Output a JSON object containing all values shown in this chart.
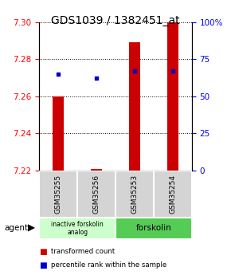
{
  "title": "GDS1039 / 1382451_at",
  "samples": [
    "GSM35255",
    "GSM35256",
    "GSM35253",
    "GSM35254"
  ],
  "bar_bottoms": [
    7.22,
    7.22,
    7.22,
    7.22
  ],
  "bar_tops": [
    7.26,
    7.221,
    7.289,
    7.3
  ],
  "percentile_values": [
    65,
    62,
    67,
    67
  ],
  "ylim_left": [
    7.22,
    7.3
  ],
  "ylim_right": [
    0,
    100
  ],
  "yticks_left": [
    7.22,
    7.24,
    7.26,
    7.28,
    7.3
  ],
  "yticks_right": [
    0,
    25,
    50,
    75,
    100
  ],
  "ytick_labels_right": [
    "0",
    "25",
    "50",
    "75",
    "100%"
  ],
  "bar_color": "#cc0000",
  "dot_color": "#0000cc",
  "bg_color": "#ffffff",
  "agent_label": "agent",
  "group1_label": "inactive forskolin\nanalog",
  "group2_label": "forskolin",
  "group1_color": "#ccffcc",
  "group2_color": "#55cc55",
  "legend_red_label": "transformed count",
  "legend_blue_label": "percentile rank within the sample",
  "title_fontsize": 10,
  "tick_fontsize": 7.5,
  "label_fontsize": 7,
  "bar_width": 0.3
}
